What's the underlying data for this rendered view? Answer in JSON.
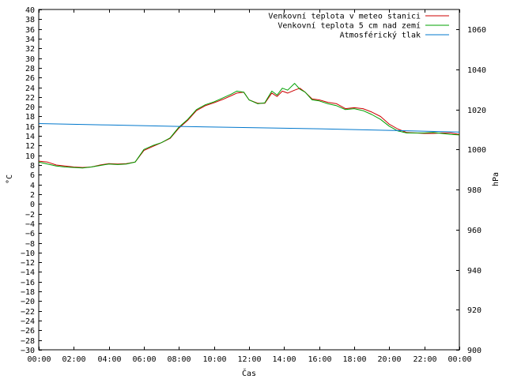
{
  "chart_data": {
    "type": "line",
    "xlabel": "Čas",
    "ylabel_left": "°C",
    "ylabel_right": "hPa",
    "x_ticks": [
      "00:00",
      "02:00",
      "04:00",
      "06:00",
      "08:00",
      "10:00",
      "12:00",
      "14:00",
      "16:00",
      "18:00",
      "20:00",
      "22:00",
      "00:00"
    ],
    "x_range_hours": [
      0,
      24
    ],
    "y_left_range": [
      -30,
      40
    ],
    "y_left_step": 2,
    "y_right_range": [
      900,
      1070
    ],
    "y_right_ticks": [
      900,
      920,
      940,
      960,
      980,
      1000,
      1020,
      1040,
      1060
    ],
    "legend_position": "top-right",
    "series": [
      {
        "name": "Venkovní teplota v meteo stanici",
        "color": "#cc0000",
        "axis": "left",
        "points": [
          [
            0,
            8.8
          ],
          [
            0.5,
            8.6
          ],
          [
            1,
            8.0
          ],
          [
            1.5,
            7.8
          ],
          [
            2,
            7.6
          ],
          [
            2.5,
            7.5
          ],
          [
            3,
            7.6
          ],
          [
            3.5,
            8.0
          ],
          [
            4,
            8.3
          ],
          [
            4.5,
            8.2
          ],
          [
            5,
            8.3
          ],
          [
            5.5,
            8.6
          ],
          [
            6,
            11.0
          ],
          [
            6.5,
            11.8
          ],
          [
            7,
            12.6
          ],
          [
            7.5,
            13.5
          ],
          [
            8,
            15.6
          ],
          [
            8.5,
            17.2
          ],
          [
            9,
            19.2
          ],
          [
            9.5,
            20.2
          ],
          [
            10,
            20.8
          ],
          [
            10.5,
            21.5
          ],
          [
            11,
            22.3
          ],
          [
            11.3,
            22.8
          ],
          [
            11.7,
            23.0
          ],
          [
            12,
            21.4
          ],
          [
            12.5,
            20.7
          ],
          [
            12.9,
            20.7
          ],
          [
            13.3,
            22.8
          ],
          [
            13.6,
            22.1
          ],
          [
            13.9,
            23.2
          ],
          [
            14.2,
            22.8
          ],
          [
            14.6,
            23.4
          ],
          [
            14.9,
            23.8
          ],
          [
            15.2,
            23.0
          ],
          [
            15.6,
            21.6
          ],
          [
            16,
            21.4
          ],
          [
            16.5,
            20.9
          ],
          [
            17,
            20.6
          ],
          [
            17.5,
            19.6
          ],
          [
            18,
            19.8
          ],
          [
            18.5,
            19.6
          ],
          [
            19,
            18.9
          ],
          [
            19.5,
            18.0
          ],
          [
            20,
            16.4
          ],
          [
            20.5,
            15.4
          ],
          [
            21,
            14.7
          ],
          [
            21.5,
            14.6
          ],
          [
            22,
            14.5
          ],
          [
            22.5,
            14.5
          ],
          [
            23,
            14.6
          ],
          [
            23.5,
            14.6
          ],
          [
            24,
            14.3
          ]
        ]
      },
      {
        "name": "Venkovní teplota 5 cm nad zemí",
        "color": "#00a000",
        "axis": "left",
        "points": [
          [
            0,
            8.6
          ],
          [
            0.5,
            8.2
          ],
          [
            1,
            7.8
          ],
          [
            1.5,
            7.6
          ],
          [
            2,
            7.5
          ],
          [
            2.5,
            7.4
          ],
          [
            3,
            7.6
          ],
          [
            3.5,
            7.9
          ],
          [
            4,
            8.2
          ],
          [
            4.5,
            8.1
          ],
          [
            5,
            8.2
          ],
          [
            5.5,
            8.6
          ],
          [
            6,
            11.2
          ],
          [
            6.5,
            12.0
          ],
          [
            7,
            12.6
          ],
          [
            7.5,
            13.6
          ],
          [
            8,
            15.8
          ],
          [
            8.5,
            17.4
          ],
          [
            9,
            19.4
          ],
          [
            9.5,
            20.4
          ],
          [
            10,
            21.0
          ],
          [
            10.5,
            21.8
          ],
          [
            11,
            22.6
          ],
          [
            11.3,
            23.2
          ],
          [
            11.7,
            23.0
          ],
          [
            12,
            21.4
          ],
          [
            12.5,
            20.6
          ],
          [
            12.9,
            20.8
          ],
          [
            13.3,
            23.2
          ],
          [
            13.6,
            22.4
          ],
          [
            13.9,
            23.8
          ],
          [
            14.2,
            23.4
          ],
          [
            14.6,
            24.8
          ],
          [
            14.9,
            23.6
          ],
          [
            15.2,
            23.0
          ],
          [
            15.6,
            21.4
          ],
          [
            16,
            21.2
          ],
          [
            16.5,
            20.6
          ],
          [
            17,
            20.2
          ],
          [
            17.5,
            19.4
          ],
          [
            18,
            19.6
          ],
          [
            18.5,
            19.2
          ],
          [
            19,
            18.4
          ],
          [
            19.5,
            17.4
          ],
          [
            20,
            16.0
          ],
          [
            20.5,
            15.0
          ],
          [
            21,
            14.6
          ],
          [
            21.5,
            14.6
          ],
          [
            22,
            14.6
          ],
          [
            22.5,
            14.7
          ],
          [
            23,
            14.5
          ],
          [
            23.5,
            14.3
          ],
          [
            24,
            14.2
          ]
        ]
      },
      {
        "name": "Atmosférický tlak",
        "color": "#0077cc",
        "axis": "right",
        "points": [
          [
            0,
            1013.0
          ],
          [
            4,
            1012.3
          ],
          [
            8,
            1011.6
          ],
          [
            12,
            1011.0
          ],
          [
            16,
            1010.4
          ],
          [
            20,
            1009.6
          ],
          [
            24,
            1008.8
          ]
        ]
      }
    ]
  }
}
